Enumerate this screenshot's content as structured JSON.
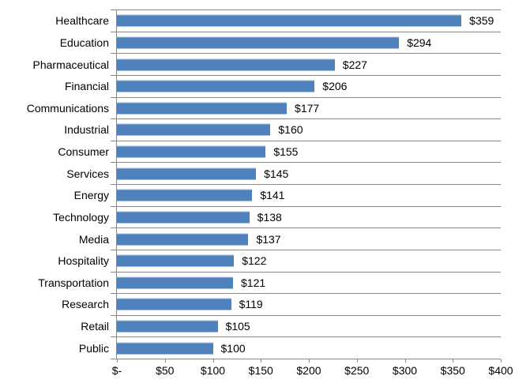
{
  "chart_data": {
    "type": "bar",
    "orientation": "horizontal",
    "title": "",
    "xlabel": "",
    "ylabel": "",
    "categories": [
      "Healthcare",
      "Education",
      "Pharmaceutical",
      "Financial",
      "Communications",
      "Industrial",
      "Consumer",
      "Services",
      "Energy",
      "Technology",
      "Media",
      "Hospitality",
      "Transportation",
      "Research",
      "Retail",
      "Public"
    ],
    "values": [
      359,
      294,
      227,
      206,
      177,
      160,
      155,
      145,
      141,
      138,
      137,
      122,
      121,
      119,
      105,
      100
    ],
    "value_labels": [
      "$359",
      "$294",
      "$227",
      "$206",
      "$177",
      "$160",
      "$155",
      "$145",
      "$141",
      "$138",
      "$137",
      "$122",
      "$121",
      "$119",
      "$105",
      "$100"
    ],
    "x_axis": {
      "min": 0,
      "max": 400,
      "tick_step": 50,
      "tick_labels": [
        "$-",
        "$50",
        "$100",
        "$150",
        "$200",
        "$250",
        "$300",
        "$350",
        "$400"
      ]
    },
    "legend": "none",
    "gridlines": "horizontal lines at category boundaries",
    "colors": {
      "bar": "#4F81BD",
      "bar_highlight": "#A7BFDC",
      "gridline": "#878787",
      "label": "#000000",
      "background": "#FFFFFF"
    }
  }
}
